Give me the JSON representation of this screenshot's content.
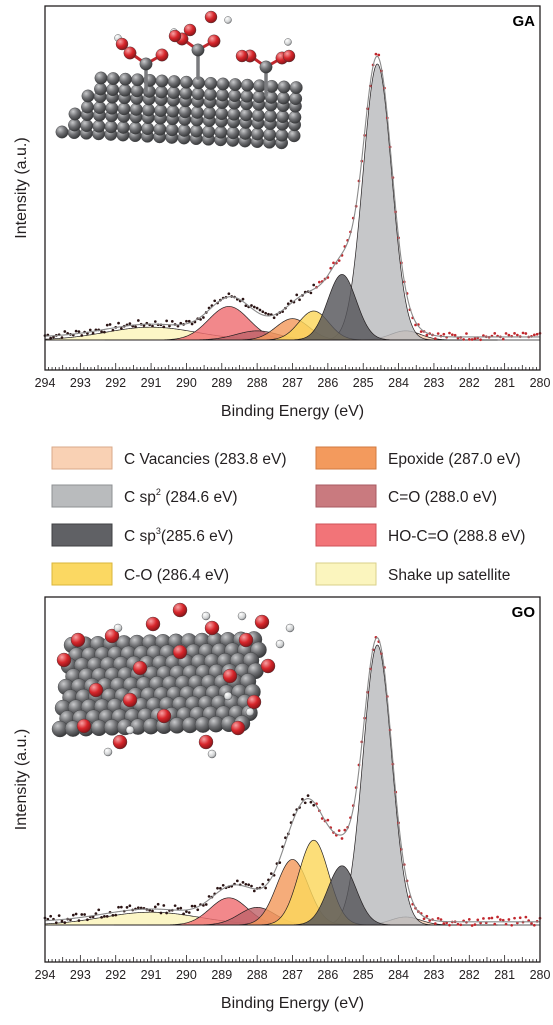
{
  "chart_data": [
    {
      "type": "area",
      "panel_label": "GA",
      "xlabel": "Binding Energy (eV)",
      "ylabel": "Intensity (a.u.)",
      "xlim": [
        294,
        280
      ],
      "x_ticks": [
        294,
        293,
        292,
        291,
        290,
        289,
        288,
        287,
        286,
        285,
        284,
        283,
        282,
        281,
        280
      ],
      "y_ticks": [],
      "grid": false,
      "components": [
        {
          "name": "C Vacancies (283.8 eV)",
          "center": 283.8,
          "height": 0.03,
          "fwhm": 1.0,
          "color": "#f9d1b4"
        },
        {
          "name": "C sp2 (284.6 eV)",
          "center": 284.6,
          "height": 0.905,
          "fwhm": 0.95,
          "color": "#b9bbbd"
        },
        {
          "name": "C sp3 (285.6 eV)",
          "center": 285.6,
          "height": 0.215,
          "fwhm": 0.95,
          "color": "#55565a"
        },
        {
          "name": "C-O (286.4 eV)",
          "center": 286.4,
          "height": 0.095,
          "fwhm": 1.0,
          "color": "#fbd75b"
        },
        {
          "name": "Epoxide (287.0 eV)",
          "center": 287.0,
          "height": 0.07,
          "fwhm": 1.1,
          "color": "#f39a5d"
        },
        {
          "name": "C=O (288.0 eV)",
          "center": 288.0,
          "height": 0.03,
          "fwhm": 1.4,
          "color": "#c0646a"
        },
        {
          "name": "HO-C=O (288.8 eV)",
          "center": 288.8,
          "height": 0.11,
          "fwhm": 1.35,
          "color": "#ef6e72"
        },
        {
          "name": "Shake up satellite",
          "center": 291.0,
          "height": 0.042,
          "fwhm": 3.0,
          "color": "#fbf4ba"
        }
      ],
      "experimental": {
        "x_start": 294.0,
        "x_end": 280.0,
        "step": 0.08,
        "color": "#2b1414",
        "high_be_color": "#c1272d"
      }
    },
    {
      "type": "area",
      "panel_label": "GO",
      "xlabel": "Binding Energy (eV)",
      "ylabel": "Intensity (a.u.)",
      "xlim": [
        294,
        280
      ],
      "x_ticks": [
        294,
        293,
        292,
        291,
        290,
        289,
        288,
        287,
        286,
        285,
        284,
        283,
        282,
        281,
        280
      ],
      "y_ticks": [],
      "grid": false,
      "components": [
        {
          "name": "C Vacancies (283.8 eV)",
          "center": 283.8,
          "height": 0.025,
          "fwhm": 1.0,
          "color": "#f9d1b4"
        },
        {
          "name": "C sp2 (284.6 eV)",
          "center": 284.6,
          "height": 0.875,
          "fwhm": 0.95,
          "color": "#b9bbbd"
        },
        {
          "name": "C sp3 (285.6 eV)",
          "center": 285.6,
          "height": 0.185,
          "fwhm": 0.95,
          "color": "#55565a"
        },
        {
          "name": "C-O (286.4 eV)",
          "center": 286.4,
          "height": 0.265,
          "fwhm": 1.0,
          "color": "#fbd75b"
        },
        {
          "name": "Epoxide (287.0 eV)",
          "center": 287.0,
          "height": 0.205,
          "fwhm": 1.05,
          "color": "#f39a5d"
        },
        {
          "name": "C=O (288.0 eV)",
          "center": 288.0,
          "height": 0.055,
          "fwhm": 1.2,
          "color": "#c0646a"
        },
        {
          "name": "HO-C=O (288.8 eV)",
          "center": 288.8,
          "height": 0.085,
          "fwhm": 1.25,
          "color": "#ef6e72"
        },
        {
          "name": "Shake up satellite",
          "center": 291.0,
          "height": 0.04,
          "fwhm": 3.2,
          "color": "#fbf4ba"
        }
      ],
      "experimental": {
        "x_start": 294.0,
        "x_end": 280.0,
        "step": 0.08,
        "color": "#2b1414",
        "high_be_color": "#c1272d"
      }
    }
  ],
  "legend": {
    "items": [
      {
        "label": "C Vacancies (283.8 eV)",
        "color": "#f9d1b4",
        "border": "#d9a98a"
      },
      {
        "label": "Epoxide (287.0 eV)",
        "color": "#f39a5d",
        "border": "#d07a40"
      },
      {
        "label": "C sp",
        "sup": "2",
        "suffix": " (284.6 eV)",
        "color": "#b9bbbd",
        "border": "#8e9093"
      },
      {
        "label": "C=O (288.0 eV)",
        "color": "#c97a7f",
        "border": "#a85a60"
      },
      {
        "label": "C sp",
        "sup": "3",
        "suffix": "(285.6 eV)",
        "color": "#606165",
        "border": "#3f4043"
      },
      {
        "label": "HO-C=O (288.8 eV)",
        "color": "#f27478",
        "border": "#cf5257"
      },
      {
        "label": "C-O (286.4 eV)",
        "color": "#fbd862",
        "border": "#d9b63a"
      },
      {
        "label": "Shake up satellite",
        "color": "#fbf5be",
        "border": "#d9d08a"
      }
    ]
  },
  "colors": {
    "axis": "#231f20",
    "fit_envelope": "#8a8a8a",
    "carbon_atom": "#6d6e71",
    "oxygen_atom": "#d7262b",
    "hydrogen_atom": "#e6e7e8"
  }
}
